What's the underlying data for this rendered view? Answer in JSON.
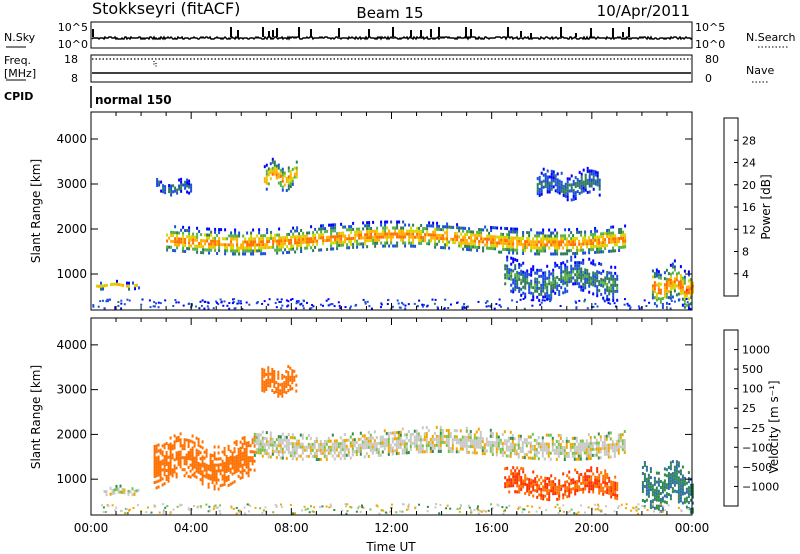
{
  "header": {
    "station": "Stokkseyri (fitACF)",
    "beam": "Beam 15",
    "date": "10/Apr/2011"
  },
  "status_panels": {
    "nsky": {
      "label": "N.Sky",
      "left_ticks": [
        "10^5",
        "10^0"
      ],
      "right_label": "N.Search",
      "right_ticks": [
        "10^5",
        "10^0"
      ]
    },
    "freq": {
      "label_line1": "Freq.",
      "label_line2": "[MHz]",
      "left_ticks": [
        "18",
        "8"
      ],
      "right_label": "Nave",
      "right_ticks": [
        "80",
        "0"
      ]
    },
    "cpid": {
      "label": "CPID",
      "value": "normal 150"
    }
  },
  "chart_data": [
    {
      "type": "heatmap",
      "id": "power",
      "ylabel": "Slant Range [km]",
      "ylim": [
        200,
        4600
      ],
      "yticks": [
        1000,
        2000,
        3000,
        4000
      ],
      "xlim": [
        0,
        24
      ],
      "colorbar": {
        "label": "Power [dB]",
        "ticks": [
          "4",
          "8",
          "12",
          "16",
          "20",
          "24",
          "28"
        ],
        "colors": [
          "#0000ff",
          "#1a4fd9",
          "#2f7a5b",
          "#57b046",
          "#d6d600",
          "#ffb000",
          "#ff7000",
          "#ff2000",
          "#ff0000"
        ]
      },
      "structures": [
        {
          "name": "main echo band",
          "t": [
            3.0,
            21.3
          ],
          "range_km": [
            1500,
            2100
          ],
          "peak_power_db": 24
        },
        {
          "name": "early band",
          "t": [
            0.2,
            2.0
          ],
          "range_km": [
            700,
            850
          ],
          "peak_power_db": 20
        },
        {
          "name": "upper patch",
          "t": [
            6.9,
            8.2
          ],
          "range_km": [
            2900,
            3500
          ],
          "peak_power_db": 22
        },
        {
          "name": "late upper arc",
          "t": [
            17.8,
            20.3
          ],
          "range_km": [
            2700,
            3300
          ],
          "peak_power_db": 8
        },
        {
          "name": "morning arc",
          "t": [
            2.6,
            4.0
          ],
          "range_km": [
            2800,
            3100
          ],
          "peak_power_db": 8
        },
        {
          "name": "evening low",
          "t": [
            16.5,
            21.0
          ],
          "range_km": [
            500,
            1300
          ],
          "peak_power_db": 10
        },
        {
          "name": "late night",
          "t": [
            22.4,
            24.0
          ],
          "range_km": [
            350,
            1200
          ],
          "peak_power_db": 24
        }
      ]
    },
    {
      "type": "heatmap",
      "id": "velocity",
      "ylabel": "Slant Range [km]",
      "xlabel": "Time UT",
      "ylim": [
        200,
        4600
      ],
      "yticks": [
        1000,
        2000,
        3000,
        4000
      ],
      "xlim": [
        0,
        24
      ],
      "xticks": [
        "00:00",
        "04:00",
        "08:00",
        "12:00",
        "16:00",
        "20:00",
        "00:00"
      ],
      "colorbar": {
        "label": "Velocity [m s⁻¹]",
        "ticks": [
          "1000",
          "500",
          "100",
          "25",
          "−25",
          "−100",
          "−500",
          "−1000"
        ],
        "colors": [
          "#1f3fbf",
          "#2f70a0",
          "#2f8a4b",
          "#78c24a",
          "#c8c8c4",
          "#f0a800",
          "#ff7000",
          "#ff3000",
          "#ff0000"
        ]
      },
      "structures": [
        {
          "name": "main band (ground scatter)",
          "t": [
            6.5,
            21.3
          ],
          "range_km": [
            1500,
            2100
          ],
          "velocity_ms": 0
        },
        {
          "name": "early band",
          "t": [
            0.5,
            2.0
          ],
          "range_km": [
            650,
            850
          ],
          "velocity_ms": 0
        },
        {
          "name": "morning flow",
          "t": [
            2.5,
            6.5
          ],
          "range_km": [
            900,
            1900
          ],
          "velocity_ms": -200
        },
        {
          "name": "upper patch",
          "t": [
            6.8,
            8.2
          ],
          "range_km": [
            2900,
            3500
          ],
          "velocity_ms": -200
        },
        {
          "name": "evening flow",
          "t": [
            16.5,
            21.0
          ],
          "range_km": [
            600,
            1200
          ],
          "velocity_ms": -300
        },
        {
          "name": "late night",
          "t": [
            22.0,
            24.0
          ],
          "range_km": [
            400,
            1300
          ],
          "velocity_ms": 100
        }
      ]
    }
  ]
}
